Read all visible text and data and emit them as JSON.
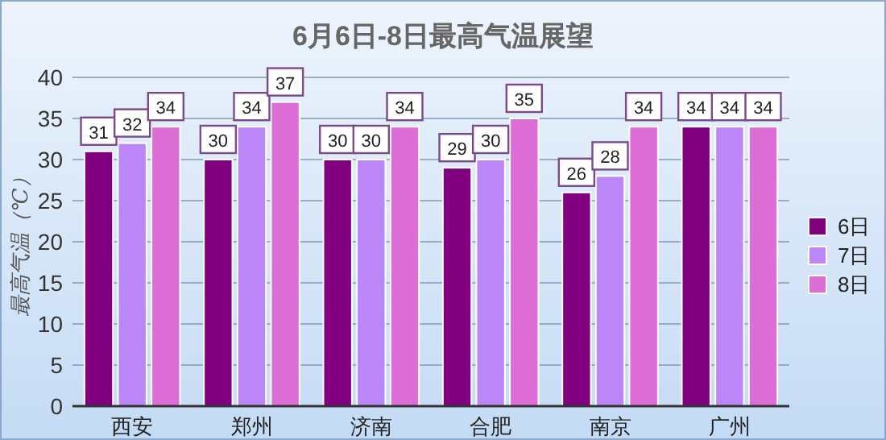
{
  "chart_data": {
    "type": "bar",
    "title": "6月6日-8日最高气温展望",
    "ylabel": "最高气温（℃）",
    "categories": [
      "西安",
      "郑州",
      "济南",
      "合肥",
      "南京",
      "广州"
    ],
    "series": [
      {
        "name": "6日",
        "color": "#800080",
        "values": [
          31,
          30,
          30,
          29,
          26,
          34
        ]
      },
      {
        "name": "7日",
        "color": "#bb86f8",
        "values": [
          32,
          34,
          30,
          30,
          28,
          34
        ]
      },
      {
        "name": "8日",
        "color": "#dd6ed8",
        "values": [
          34,
          37,
          34,
          35,
          34,
          34
        ]
      }
    ],
    "ylim": [
      0,
      40
    ],
    "yticks": [
      0,
      5,
      10,
      15,
      20,
      25,
      30,
      35,
      40
    ],
    "grid": "y",
    "legend": "right",
    "data_labels": true
  }
}
